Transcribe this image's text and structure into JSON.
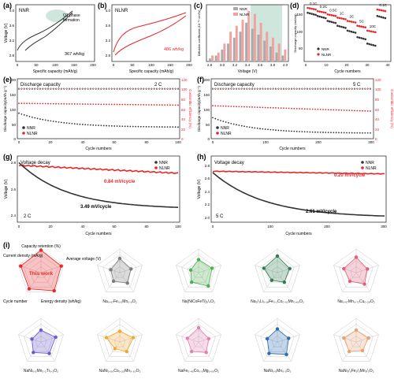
{
  "colors": {
    "nnr": "#333333",
    "nlnr": "#e8262a",
    "shade_green": "#cfe6dc",
    "pink_fill": "#f2a0a0"
  },
  "panels": {
    "a": {
      "tag": "(a)",
      "name": "NNR",
      "ylabel": "Voltage (V)",
      "xlabel": "Specific capacity (mAh/g)",
      "yticks": [
        "4.0",
        "3.6",
        "3.2",
        "2.8"
      ],
      "xticks": [
        "0",
        "50",
        "100",
        "150",
        "200"
      ],
      "ann1": "O1 phase",
      "ann2": "formation",
      "energy": "367 wh/kg"
    },
    "b": {
      "tag": "(b)",
      "name": "NLNR",
      "xlabel": "Specific capacity (mAh/g)",
      "yticks": [
        "4.0",
        "3.6",
        "3.2",
        "2.8"
      ],
      "xticks": [
        "0",
        "50",
        "100",
        "150",
        "200"
      ],
      "energy": "486 wh/kg"
    },
    "c": {
      "tag": "(c)",
      "ylabel": "Diffusion coefficient (10⁻¹⁴ cm²/s)",
      "xlabel": "Voltage (V)",
      "xticks": [
        "2.8",
        "3.0",
        "3.2",
        "3.4",
        "3.6",
        "3.8",
        "4.0"
      ],
      "legend": [
        "NNR",
        "NLNR"
      ]
    },
    "d": {
      "tag": "(d)",
      "ylabel": "Discharge capacity (mAh/g)",
      "xlabel": "Cycle numbers",
      "xticks": [
        "0",
        "10",
        "20",
        "30",
        "40"
      ],
      "yticks": [
        "150",
        "100",
        "50"
      ],
      "rates": [
        "0.1C",
        "0.2C",
        "0.5C",
        "1C",
        "2C",
        "5C",
        "10C",
        "0.1C"
      ],
      "legend": [
        "NNR",
        "NLNR"
      ]
    },
    "e": {
      "tag": "(e)",
      "title": "Discharge capacity",
      "rate": "2 C",
      "ylabel_left": "Discharge capacity(mAh g⁻¹)",
      "ylabel_right": "Coulombic efficiency (%)",
      "xlabel": "Cycle numbers",
      "xticks": [
        "0",
        "20",
        "40",
        "60",
        "80",
        "100"
      ],
      "yticks": [
        "200",
        "150",
        "100",
        "50",
        "0"
      ],
      "rticks": [
        "120",
        "100",
        "80",
        "60",
        "40",
        "20",
        "0"
      ],
      "legend": [
        "NNR",
        "NLNR"
      ]
    },
    "f": {
      "tag": "(f)",
      "title": "Discharge capacity",
      "rate": "5 C",
      "ylabel_left": "Discharge capacity(mAh g⁻¹)",
      "ylabel_right": "Coulombic efficiency (%)",
      "xlabel": "Cycle numbers",
      "xticks": [
        "0",
        "100",
        "200",
        "300"
      ],
      "yticks": [
        "200",
        "150",
        "100",
        "50",
        "0"
      ],
      "rticks": [
        "120",
        "100",
        "80",
        "60",
        "40",
        "20",
        "0"
      ],
      "legend": [
        "NNR",
        "NLNR"
      ]
    },
    "g": {
      "tag": "(g)",
      "title": "Voltage decay",
      "rate": "2 C",
      "ylabel": "Voltage (V)",
      "xlabel": "Cycle numbers",
      "xticks": [
        "0",
        "20",
        "40",
        "60",
        "80",
        "100"
      ],
      "yticks": [
        "2.8",
        "2.6",
        "2.4"
      ],
      "nlnr_decay": "0.84 mV/cycle",
      "nnr_decay": "3.49 mV/cycle",
      "legend": [
        "NNR",
        "NLNR"
      ]
    },
    "h": {
      "tag": "(h)",
      "title": "Voltage decay",
      "rate": "5 C",
      "ylabel": "Voltage (V)",
      "xlabel": "Cycle numbers",
      "xticks": [
        "0",
        "100",
        "200",
        "300"
      ],
      "yticks": [
        "2.8",
        "2.6",
        "2.4",
        "2.2",
        "2.0"
      ],
      "nlnr_decay": "0.20 mV/cycle",
      "nnr_decay": "2.61 mV/cycle",
      "legend": [
        "NNR",
        "NLNR"
      ]
    },
    "i": {
      "tag": "(i)",
      "axes": [
        "Capacity retention (%)",
        "Average voltage (V)",
        "Energy density (wh/kg)",
        "Cycle number",
        "Current density (mA/g)"
      ],
      "this_work": "This work"
    }
  },
  "radar_labels": [
    "This work",
    "Na₀.₆₇Fe₀.₅Mn₀.₅O₂",
    "Na(NiCoFeTi)₁/₄O₂",
    "Na₂/₃Li₀.₁₈Fe₀.₁Co₀.₀₁Mn₀.₆₅O₂",
    "Na₀.₆₇Mn₀.₇₂Cu₀.₂₈O₂",
    "NaNi₀.₅Mn₀.₂Ti₀.₃O₂",
    "NaNi₀.₅₀Co₀.₂₀Mn₀.₃₀O₂",
    "NaFe₀.₄₅Co₀.₅Mg₀.₀₅O₂",
    "NaNi₀.₅Mn₀.₅O₂",
    "NaNi₁/₃Fe₁/₃Mn₁/₃O₂"
  ],
  "radar_colors": [
    "#e8262a",
    "#7c7c7c",
    "#4caf50",
    "#2e7d4f",
    "#e0607a",
    "#6a5acd",
    "#f0a830",
    "#e67fb0",
    "#2b6cb0",
    "#e8a070"
  ],
  "chart_data": [
    {
      "panel": "c",
      "type": "bar",
      "xlabel": "Voltage (V)",
      "categories": [
        "2.8",
        "2.9",
        "3.0",
        "3.1",
        "3.2",
        "3.3",
        "3.4",
        "3.5",
        "3.6",
        "3.7",
        "3.8",
        "3.9",
        "4.0"
      ],
      "series": [
        {
          "name": "NNR",
          "values": [
            0.5,
            1,
            2,
            3,
            4,
            5,
            6.5,
            5.5,
            4.5,
            3.5,
            2.5,
            1.5,
            1
          ]
        },
        {
          "name": "NLNR",
          "values": [
            1,
            1.5,
            3,
            5,
            6,
            7,
            8.5,
            8,
            6.5,
            5,
            4,
            3,
            2
          ]
        }
      ]
    },
    {
      "panel": "d",
      "type": "scatter",
      "xlabel": "Cycle numbers",
      "ylabel": "Discharge capacity (mAh/g)",
      "xlim": [
        0,
        42
      ],
      "ylim": [
        0,
        170
      ],
      "series": [
        {
          "name": "NNR",
          "y_start_per_rate": [
            150,
            140,
            125,
            110,
            95,
            75,
            55,
            140
          ]
        },
        {
          "name": "NLNR",
          "y_start_per_rate": [
            165,
            155,
            145,
            135,
            125,
            110,
            95,
            160
          ]
        }
      ]
    },
    {
      "panel": "e",
      "type": "scatter",
      "xlim": [
        0,
        100
      ],
      "ylim": [
        0,
        200
      ],
      "series": [
        {
          "name": "NNR",
          "capacity_start": 85,
          "capacity_end": 38,
          "ce": 100
        },
        {
          "name": "NLNR",
          "capacity_start": 118,
          "capacity_end": 112,
          "ce": 100
        }
      ]
    },
    {
      "panel": "f",
      "type": "scatter",
      "xlim": [
        0,
        300
      ],
      "ylim": [
        0,
        200
      ],
      "series": [
        {
          "name": "NNR",
          "capacity_start": 70,
          "capacity_end": 18,
          "ce": 100
        },
        {
          "name": "NLNR",
          "capacity_start": 110,
          "capacity_end": 92,
          "ce": 100
        }
      ]
    },
    {
      "panel": "g",
      "type": "line",
      "xlim": [
        0,
        100
      ],
      "ylim": [
        2.35,
        2.85
      ],
      "series": [
        {
          "name": "NNR",
          "start": 2.8,
          "end": 2.45
        },
        {
          "name": "NLNR",
          "start": 2.78,
          "end": 2.72
        }
      ]
    },
    {
      "panel": "h",
      "type": "line",
      "xlim": [
        0,
        300
      ],
      "ylim": [
        1.95,
        2.95
      ],
      "series": [
        {
          "name": "NNR",
          "start": 2.7,
          "end": 2.02
        },
        {
          "name": "NLNR",
          "start": 2.72,
          "end": 2.68
        }
      ]
    }
  ]
}
